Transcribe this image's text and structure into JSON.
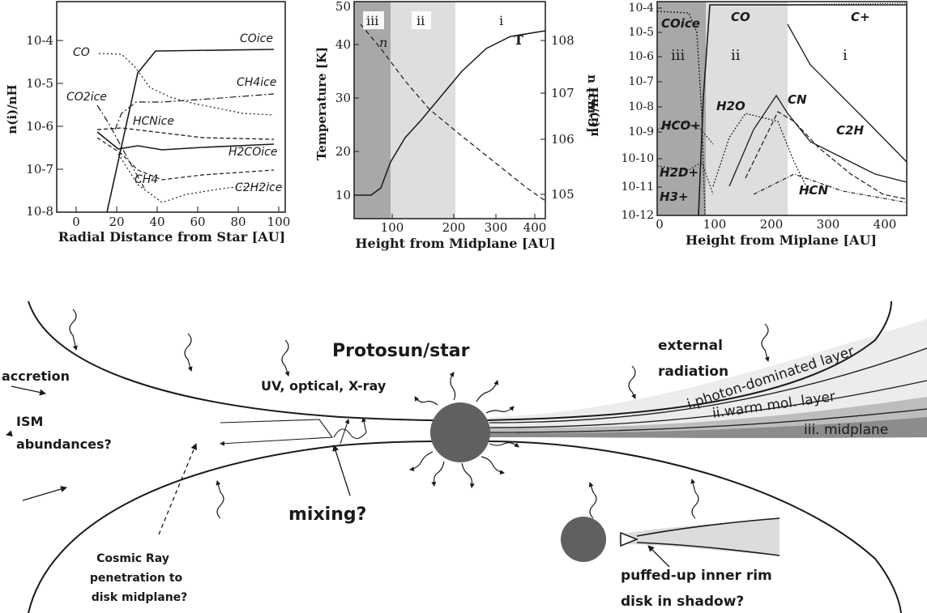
{
  "panel1": {
    "ylabel": "n(i)/nH",
    "xlabel": "Radial Distance from Star [AU]",
    "yticks": [
      "10-4",
      "10-5",
      "10-6",
      "10-7",
      "10-8"
    ],
    "xticks": [
      "0",
      "20",
      "40",
      "60",
      "80",
      "100"
    ],
    "labels": {
      "co": "CO",
      "co_ice": "COice",
      "ch4_ice": "CH4ice",
      "co2_ice": "CO2ice",
      "hcn_ice": "HCNice",
      "h2co_ice": "H2COice",
      "ch4": "CH4",
      "c2h2_ice": "C2H2ice"
    }
  },
  "panel2": {
    "ylabel_left": "Temperature [K]",
    "ylabel_right": "n [cm-3]",
    "xlabel": "Height from Midplane [AU]",
    "yticks_left": [
      "10",
      "20",
      "30",
      "40",
      "50"
    ],
    "yticks_right": [
      "105",
      "106",
      "107",
      "108"
    ],
    "xticks": [
      "100",
      "200",
      "300",
      "400"
    ],
    "regions": {
      "iii": "iii",
      "ii": "ii",
      "i": "i"
    },
    "curve_labels": {
      "n": "n",
      "T": "T"
    }
  },
  "panel3": {
    "ylabel": "n(i)/nH",
    "xlabel": "Height from Miplane [AU]",
    "yticks": [
      "10-4",
      "10-5",
      "10-6",
      "10-7",
      "10-8",
      "10-9",
      "10-10",
      "10-11",
      "10-12"
    ],
    "xticks": [
      "0",
      "100",
      "200",
      "300",
      "400"
    ],
    "regions": {
      "iii": "iii",
      "ii": "ii",
      "i": "i"
    },
    "labels": {
      "co_ice": "COice",
      "co": "CO",
      "cplus": "C+",
      "h2o": "H2O",
      "cn": "CN",
      "hco": "HCO+",
      "c2h": "C2H",
      "h2d": "H2D+",
      "h3": "H3+",
      "hcn": "HCN"
    }
  },
  "diagram": {
    "star_label": "Protosun/star",
    "radiation_label": "UV, optical, X-ray",
    "accretion": "accretion",
    "ism1": "ISM",
    "ism2": "abundances?",
    "external1": "external",
    "external2": "radiation",
    "layer1": "i.photon-dominated layer",
    "layer2": "ii.warm mol. layer",
    "layer3": "iii. midplane",
    "mixing": "mixing?",
    "cosmic1": "Cosmic Ray",
    "cosmic2": "penetration to",
    "cosmic3": "disk midplane?",
    "rim1": "puffed-up inner rim",
    "rim2": "disk in shadow?"
  },
  "colors": {
    "ink": "#1a1a1a",
    "star": "#606060",
    "region_dark": "#a8a8a8",
    "region_light": "#dedede"
  }
}
